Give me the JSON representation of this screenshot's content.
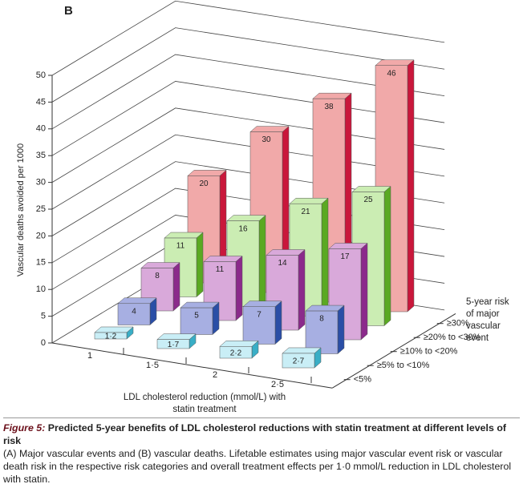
{
  "chart_data": {
    "type": "bar3d",
    "panel": "B",
    "ylabel": "Vascular deaths avoided per 1000",
    "xlabel": "LDL cholesterol reduction (mmol/L) with statin treatment",
    "depth_title": "5-year risk of major vascular event",
    "categories": [
      "1",
      "1·5",
      "2",
      "2·5"
    ],
    "ylim": [
      0,
      50
    ],
    "yticks": [
      0,
      5,
      10,
      15,
      20,
      25,
      30,
      35,
      40,
      45,
      50
    ],
    "grid": true,
    "series": [
      {
        "name": "<5%",
        "color": "#c9eef6",
        "edge_color": "#39aec6",
        "values": [
          1.2,
          1.7,
          2.2,
          2.7
        ],
        "value_labels": [
          "1·2",
          "1·7",
          "2·2",
          "2·7"
        ]
      },
      {
        "name": "≥5% to <10%",
        "color": "#a7afe2",
        "edge_color": "#2a4ea6",
        "values": [
          4,
          5,
          7,
          8
        ]
      },
      {
        "name": "≥10% to <20%",
        "color": "#d9a9da",
        "edge_color": "#8b2a8b",
        "values": [
          8,
          11,
          14,
          17
        ]
      },
      {
        "name": "≥20% to <30%",
        "color": "#cbedb3",
        "edge_color": "#5aa922",
        "values": [
          11,
          16,
          21,
          25
        ]
      },
      {
        "name": "≥30%",
        "color": "#f1a9a9",
        "edge_color": "#c9173b",
        "values": [
          20,
          30,
          38,
          46
        ]
      }
    ]
  },
  "caption": {
    "label": "Figure 5:",
    "title": "Predicted 5-year benefits of LDL cholesterol reductions with statin treatment at different levels of risk",
    "text": "(A) Major vascular events and (B) vascular deaths. Lifetable estimates using major vascular event risk or vascular death risk in the respective risk categories and overall treatment effects per 1·0 mmol/L reduction in LDL cholesterol with statin."
  }
}
